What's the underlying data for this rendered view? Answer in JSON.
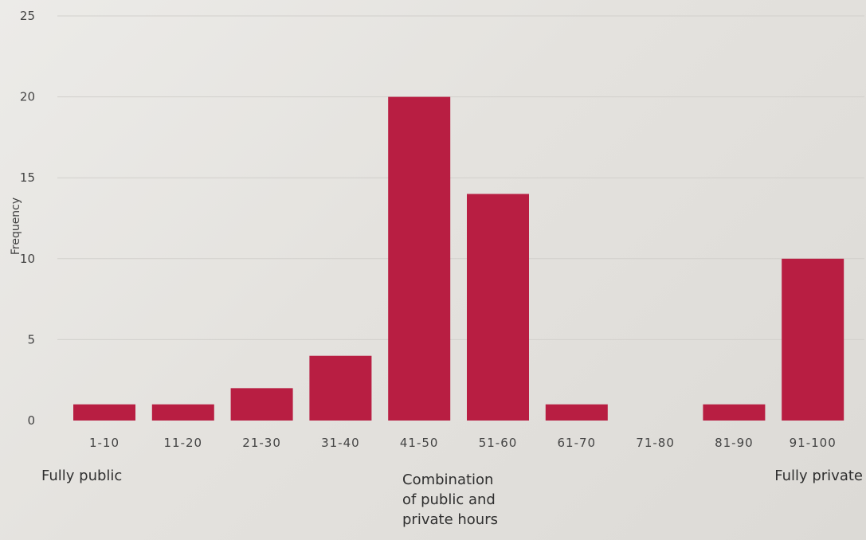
{
  "chart_data": {
    "type": "bar",
    "categories": [
      "1-10",
      "11-20",
      "21-30",
      "31-40",
      "41-50",
      "51-60",
      "61-70",
      "71-80",
      "81-90",
      "91-100"
    ],
    "values": [
      1,
      1,
      2,
      4,
      20,
      14,
      1,
      0,
      1,
      10
    ],
    "ylabel": "Frequency",
    "ylim": [
      0,
      25
    ],
    "yticks": [
      0,
      5,
      10,
      15,
      20,
      25
    ],
    "grid": true,
    "bar_color": "#b81e42",
    "annotations": {
      "left": "Fully public",
      "middle": [
        "Combination",
        "of public and",
        "private hours"
      ],
      "right": "Fully private"
    }
  }
}
